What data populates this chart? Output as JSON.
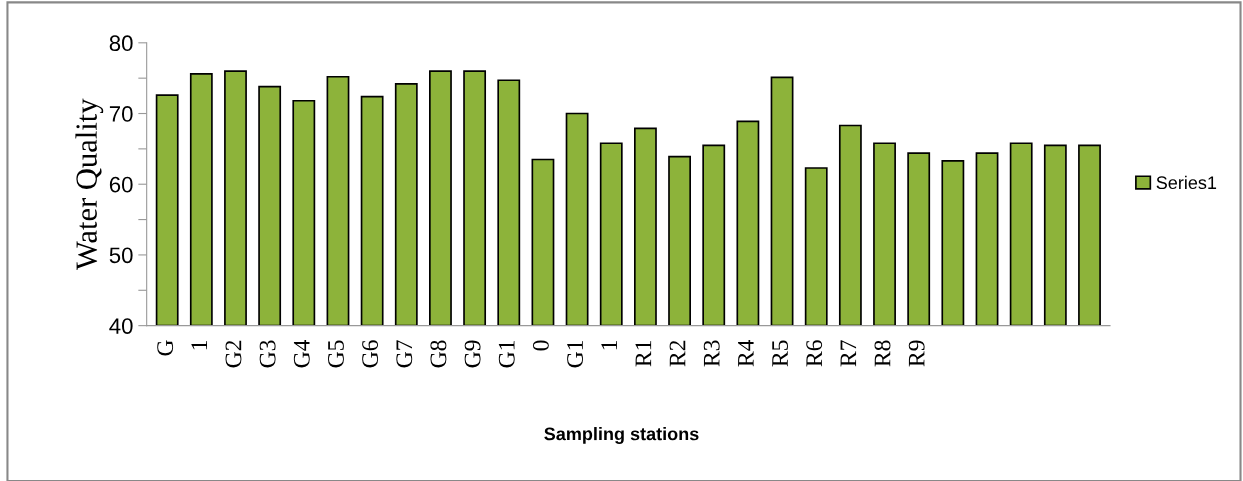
{
  "chart_data": {
    "type": "bar",
    "xlabel": "Sampling stations",
    "ylabel": "Water Quality",
    "categories": [
      "G",
      "1",
      "G2",
      "G3",
      "G4",
      "G5",
      "G6",
      "G7",
      "G8",
      "G9",
      "G1",
      "0",
      "G1",
      "1",
      "R1",
      "R2",
      "R3",
      "R4",
      "R5",
      "R6",
      "R7",
      "R8",
      "R9",
      null,
      null,
      null,
      null,
      null
    ],
    "series": [
      {
        "name": "Series1",
        "color": "#8db33a",
        "values": [
          72.6,
          75.6,
          76.0,
          73.8,
          71.8,
          75.2,
          72.4,
          74.2,
          76.0,
          76.0,
          74.7,
          63.5,
          70.0,
          65.8,
          67.9,
          63.9,
          65.5,
          68.9,
          75.1,
          62.3,
          68.3,
          65.8,
          64.4,
          63.3,
          64.4,
          65.8,
          65.5,
          65.5
        ]
      }
    ],
    "ylim": [
      40,
      80
    ],
    "yticks": [
      40,
      {
        "value": 45,
        "label": null
      },
      50,
      {
        "value": 55,
        "label": null
      },
      60,
      {
        "value": 65,
        "label": null
      },
      70,
      {
        "value": 75,
        "label": null
      },
      80
    ],
    "grid": false,
    "legend": "right"
  }
}
